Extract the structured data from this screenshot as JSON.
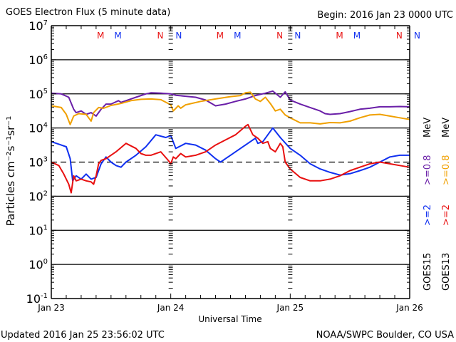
{
  "header": {
    "title": "GOES Electron Flux (5 minute data)",
    "begin": "Begin: 2016 Jan 23 0000 UTC"
  },
  "footer": {
    "updated": "Updated 2016 Jan 25 23:56:02 UTC",
    "credit": "NOAA/SWPC Boulder, CO USA"
  },
  "colors": {
    "goes15_08": "#6a1fa8",
    "goes13_08": "#f0a000",
    "goes15_2": "#1030f0",
    "goes13_2": "#e81010",
    "frame": "#000000"
  },
  "markers": [
    {
      "label": "M",
      "hour": 9.9,
      "color": "#e81010"
    },
    {
      "label": "M",
      "hour": 13.4,
      "color": "#1030f0"
    },
    {
      "label": "N",
      "hour": 21.9,
      "color": "#e81010"
    },
    {
      "label": "N",
      "hour": 25.6,
      "color": "#1030f0"
    },
    {
      "label": "M",
      "hour": 33.9,
      "color": "#e81010"
    },
    {
      "label": "M",
      "hour": 37.4,
      "color": "#1030f0"
    },
    {
      "label": "N",
      "hour": 45.9,
      "color": "#e81010"
    },
    {
      "label": "N",
      "hour": 49.5,
      "color": "#1030f0"
    },
    {
      "label": "M",
      "hour": 57.9,
      "color": "#e81010"
    },
    {
      "label": "M",
      "hour": 61.4,
      "color": "#1030f0"
    },
    {
      "label": "N",
      "hour": 69.9,
      "color": "#e81010"
    },
    {
      "label": "N",
      "hour": 73.5,
      "color": "#1030f0"
    }
  ],
  "chart_data": {
    "type": "line",
    "title": "GOES Electron Flux (5 minute data)",
    "xlabel": "Universal Time",
    "ylabel": "Particles cm⁻²s⁻¹sr⁻¹",
    "yscale": "log",
    "xlim_hours": [
      0,
      72
    ],
    "ylim_log10": [
      -1,
      7
    ],
    "x_ticks": [
      {
        "hour": 0,
        "label": "Jan 23"
      },
      {
        "hour": 24,
        "label": "Jan 24"
      },
      {
        "hour": 48,
        "label": "Jan 25"
      },
      {
        "hour": 72,
        "label": "Jan 26"
      }
    ],
    "y_ticks": [
      {
        "exp": 7,
        "base": "10",
        "sup": "7"
      },
      {
        "exp": 6,
        "base": "10",
        "sup": "6"
      },
      {
        "exp": 5,
        "base": "10",
        "sup": "5"
      },
      {
        "exp": 4,
        "base": "10",
        "sup": "4"
      },
      {
        "exp": 3,
        "base": "10",
        "sup": "3"
      },
      {
        "exp": 2,
        "base": "10",
        "sup": "2"
      },
      {
        "exp": 1,
        "base": "10",
        "sup": "1"
      },
      {
        "exp": 0,
        "base": "10",
        "sup": "0"
      },
      {
        "exp": -1,
        "base": "10",
        "sup": "-1"
      }
    ],
    "gridlines_log10": [
      6,
      5,
      4,
      2,
      1,
      0
    ],
    "threshold_log10": 3,
    "legend": {
      "placement": "right",
      "col1": {
        "sat": "GOES15",
        "ge2": ">=2",
        "ge08": ">=0.8",
        "unit": "MeV"
      },
      "col2": {
        "sat": "GOES13",
        "ge2": ">=2",
        "ge08": ">=0.8",
        "unit": "MeV"
      }
    },
    "series": [
      {
        "name": "GOES15 >=0.8 MeV",
        "color": "#6a1fa8",
        "hours": [
          0,
          2,
          3.5,
          4.5,
          5,
          6,
          7,
          8,
          9,
          10,
          11,
          12,
          13.5,
          14,
          15,
          17,
          19,
          20,
          22,
          24,
          25,
          27,
          29,
          31,
          33,
          35,
          37,
          39,
          41,
          43,
          44.5,
          46,
          47,
          48,
          50,
          52,
          54,
          55,
          56,
          58,
          60,
          62,
          64,
          66,
          68,
          70,
          72
        ],
        "log10": [
          5.02,
          5.0,
          4.9,
          4.55,
          4.45,
          4.5,
          4.4,
          4.45,
          4.35,
          4.55,
          4.7,
          4.7,
          4.8,
          4.75,
          4.8,
          4.9,
          5.0,
          5.03,
          5.02,
          5.0,
          4.96,
          4.93,
          4.9,
          4.82,
          4.65,
          4.7,
          4.78,
          4.85,
          4.95,
          5.02,
          5.08,
          4.9,
          5.06,
          4.82,
          4.7,
          4.6,
          4.5,
          4.42,
          4.4,
          4.42,
          4.48,
          4.55,
          4.58,
          4.62,
          4.62,
          4.63,
          4.62
        ]
      },
      {
        "name": "GOES13 >=0.8 MeV",
        "color": "#f0a000",
        "hours": [
          0,
          2,
          3,
          3.8,
          4.5,
          5.5,
          7,
          8,
          8.5,
          9.5,
          10.5,
          12,
          14,
          16,
          18,
          20,
          22,
          24,
          24.5,
          25.5,
          26,
          27,
          30,
          33,
          36,
          38,
          39,
          40,
          41,
          42,
          43,
          44,
          45,
          46,
          47,
          48,
          50,
          52,
          54,
          56,
          58,
          60,
          62,
          64,
          66,
          68,
          70,
          72
        ],
        "log10": [
          4.65,
          4.6,
          4.4,
          4.1,
          4.35,
          4.42,
          4.4,
          4.2,
          4.45,
          4.6,
          4.58,
          4.66,
          4.72,
          4.8,
          4.84,
          4.85,
          4.83,
          4.68,
          4.5,
          4.65,
          4.58,
          4.68,
          4.78,
          4.85,
          4.92,
          4.95,
          5.03,
          5.05,
          4.85,
          4.78,
          4.9,
          4.72,
          4.5,
          4.55,
          4.38,
          4.3,
          4.15,
          4.15,
          4.12,
          4.16,
          4.15,
          4.2,
          4.3,
          4.38,
          4.4,
          4.35,
          4.3,
          4.25
        ]
      },
      {
        "name": "GOES15 >=2 MeV",
        "color": "#1030f0",
        "hours": [
          0,
          2,
          3,
          3.8,
          4.3,
          5,
          6,
          7,
          8,
          9,
          10,
          11,
          12,
          13,
          14,
          15,
          17,
          19,
          21,
          23,
          24,
          25,
          27,
          29,
          31,
          33,
          34,
          35,
          36,
          38,
          40,
          41,
          41.5,
          42.5,
          43.5,
          44.5,
          46,
          48,
          50,
          52,
          54,
          56,
          58,
          60,
          62,
          64,
          66,
          68,
          70,
          72
        ],
        "log10": [
          3.6,
          3.5,
          3.45,
          3.1,
          2.45,
          2.6,
          2.5,
          2.65,
          2.5,
          2.55,
          2.95,
          3.15,
          3.0,
          2.9,
          2.85,
          3.0,
          3.2,
          3.45,
          3.8,
          3.72,
          3.78,
          3.4,
          3.55,
          3.5,
          3.35,
          3.1,
          3.0,
          3.1,
          3.2,
          3.4,
          3.6,
          3.7,
          3.55,
          3.6,
          3.8,
          4.0,
          3.72,
          3.4,
          3.2,
          2.95,
          2.8,
          2.7,
          2.62,
          2.66,
          2.75,
          2.85,
          3.0,
          3.15,
          3.2,
          3.2
        ]
      },
      {
        "name": "GOES13 >=2 MeV",
        "color": "#e81010",
        "hours": [
          0,
          1.5,
          2.5,
          3.5,
          4,
          4.5,
          5,
          6,
          7,
          8,
          8.5,
          9,
          9.5,
          10,
          11,
          13,
          15,
          17,
          18,
          19,
          20,
          22,
          23.5,
          24,
          24.5,
          25,
          26,
          27,
          29,
          31,
          33,
          35,
          37,
          39,
          39.5,
          40.5,
          41.5,
          42.5,
          43.5,
          44,
          45,
          46,
          46.5,
          47,
          48,
          50,
          52,
          54,
          56,
          58,
          60,
          62,
          64,
          66,
          68,
          70,
          72
        ],
        "log10": [
          3.0,
          2.9,
          2.65,
          2.35,
          2.1,
          2.6,
          2.45,
          2.5,
          2.45,
          2.42,
          2.35,
          2.6,
          2.95,
          3.05,
          3.1,
          3.3,
          3.55,
          3.4,
          3.25,
          3.2,
          3.2,
          3.3,
          3.05,
          2.95,
          3.15,
          3.1,
          3.25,
          3.15,
          3.2,
          3.3,
          3.5,
          3.65,
          3.8,
          4.05,
          4.1,
          3.8,
          3.7,
          3.55,
          3.6,
          3.4,
          3.3,
          3.55,
          3.45,
          3.0,
          2.8,
          2.55,
          2.45,
          2.45,
          2.5,
          2.6,
          2.75,
          2.85,
          2.95,
          3.0,
          2.95,
          2.9,
          2.85
        ]
      }
    ]
  }
}
